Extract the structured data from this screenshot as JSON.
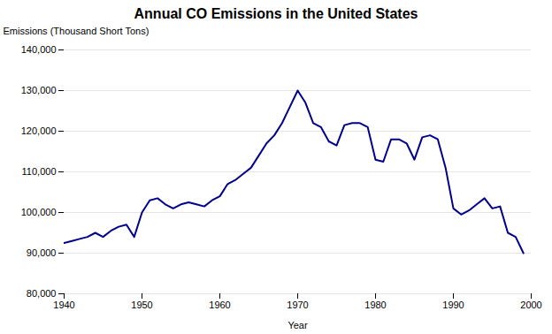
{
  "chart_data": {
    "type": "line",
    "title": "Annual CO Emissions in the United States",
    "xlabel": "Year",
    "ylabel": "Emissions (Thousand Short Tons)",
    "x": [
      1940,
      1941,
      1942,
      1943,
      1944,
      1945,
      1946,
      1947,
      1948,
      1949,
      1950,
      1951,
      1952,
      1953,
      1954,
      1955,
      1956,
      1957,
      1958,
      1959,
      1960,
      1961,
      1962,
      1963,
      1964,
      1965,
      1966,
      1967,
      1968,
      1969,
      1970,
      1971,
      1972,
      1973,
      1974,
      1975,
      1976,
      1977,
      1978,
      1979,
      1980,
      1981,
      1982,
      1983,
      1984,
      1985,
      1986,
      1987,
      1988,
      1989,
      1990,
      1991,
      1992,
      1993,
      1994,
      1995,
      1996,
      1997,
      1998,
      1999
    ],
    "values": [
      92500,
      93000,
      93500,
      94000,
      95000,
      94000,
      95500,
      96500,
      97000,
      94000,
      100000,
      103000,
      103500,
      102000,
      101000,
      102000,
      102500,
      102000,
      101500,
      103000,
      104000,
      107000,
      108000,
      109500,
      111000,
      114000,
      117000,
      119000,
      122000,
      126000,
      130000,
      127000,
      122000,
      121000,
      117500,
      116500,
      121500,
      122000,
      122000,
      121000,
      113000,
      112500,
      118000,
      118000,
      117000,
      113000,
      118500,
      119000,
      118000,
      111000,
      101000,
      99500,
      100500,
      102000,
      103500,
      101000,
      101500,
      95000,
      94000,
      90000
    ],
    "color": "#00008B",
    "xlim": [
      1940,
      2000
    ],
    "ylim": [
      80000,
      140000
    ],
    "xticks": [
      1940,
      1950,
      1960,
      1970,
      1980,
      1990,
      2000
    ],
    "yticks": [
      {
        "value": 80000,
        "label": "80,000"
      },
      {
        "value": 90000,
        "label": "90,000"
      },
      {
        "value": 100000,
        "label": "100,000"
      },
      {
        "value": 110000,
        "label": "110,000"
      },
      {
        "value": 120000,
        "label": "120,000"
      },
      {
        "value": 130000,
        "label": "130,000"
      },
      {
        "value": 140000,
        "label": "140,000"
      }
    ],
    "grid": true
  }
}
